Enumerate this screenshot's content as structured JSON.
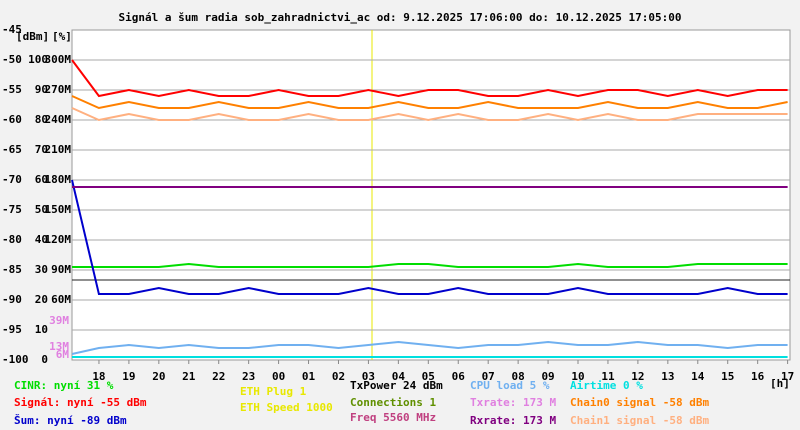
{
  "chart_data": {
    "type": "line",
    "title": "Signál a šum radia sob_zahradnictvi_ac od: 9.12.2025 17:06:00 do: 10.12.2025 17:05:00",
    "y_unit": "[dBm]",
    "y2_unit": "[%]",
    "x_unit": "[h]",
    "x": [
      17.1,
      18,
      19,
      20,
      21,
      22,
      23,
      24,
      25,
      26,
      27,
      28,
      29,
      30,
      31,
      32,
      33,
      34,
      35,
      36,
      37,
      38,
      39,
      40,
      41
    ],
    "xlim": [
      17.1,
      41.08
    ],
    "xticks": [
      18,
      19,
      20,
      21,
      22,
      23,
      {
        "value": 24,
        "label": "00"
      },
      {
        "value": 25,
        "label": "01"
      },
      {
        "value": 26,
        "label": "02"
      },
      {
        "value": 27,
        "label": "03"
      },
      {
        "value": 28,
        "label": "04"
      },
      {
        "value": 29,
        "label": "05"
      },
      {
        "value": 30,
        "label": "06"
      },
      {
        "value": 31,
        "label": "07"
      },
      {
        "value": 32,
        "label": "08"
      },
      {
        "value": 33,
        "label": "09"
      },
      {
        "value": 34,
        "label": "10"
      },
      {
        "value": 35,
        "label": "11"
      },
      {
        "value": 36,
        "label": "12"
      },
      {
        "value": 37,
        "label": "13"
      },
      {
        "value": 38,
        "label": "14"
      },
      {
        "value": 39,
        "label": "15"
      },
      {
        "value": 40,
        "label": "16"
      },
      {
        "value": 41,
        "label": "17"
      }
    ],
    "ylim": [
      -100,
      -45
    ],
    "yticks": [
      -45,
      -50,
      -55,
      -60,
      -65,
      -70,
      -75,
      -80,
      -85,
      -90,
      -95,
      -100
    ],
    "y2lim": [
      0,
      110
    ],
    "y2ticks": [
      100,
      90,
      80,
      70,
      60,
      50,
      40,
      30,
      20,
      10,
      0
    ],
    "y3lim": [
      0,
      330
    ],
    "y3ticks": [
      {
        "value": 300,
        "label": "300M"
      },
      {
        "value": 270,
        "label": "270M"
      },
      {
        "value": 240,
        "label": "240M"
      },
      {
        "value": 210,
        "label": "210M"
      },
      {
        "value": 180,
        "label": "180M"
      },
      {
        "value": 150,
        "label": "150M"
      },
      {
        "value": 120,
        "label": "120M"
      },
      {
        "value": 90,
        "label": "90M"
      },
      {
        "value": 60,
        "label": "60M"
      }
    ],
    "rate_labels": [
      "39M",
      "13M",
      "6M"
    ],
    "grid": true,
    "series": [
      {
        "name": "CINR: nyní 31 %",
        "color": "#00dd00",
        "axis": "y2",
        "values": [
          31,
          31,
          31,
          31,
          32,
          31,
          31,
          31,
          31,
          31,
          31,
          32,
          32,
          31,
          31,
          31,
          31,
          32,
          31,
          31,
          31,
          32,
          32,
          32,
          32
        ]
      },
      {
        "name": "Signál: nyní -55 dBm",
        "color": "#ff0000",
        "axis": "y",
        "values": [
          -50,
          -56,
          -55,
          -56,
          -55,
          -56,
          -56,
          -55,
          -56,
          -56,
          -55,
          -56,
          -55,
          -55,
          -56,
          -56,
          -55,
          -56,
          -55,
          -55,
          -56,
          -55,
          -56,
          -55,
          -55
        ]
      },
      {
        "name": "Šum: nyní -89 dBm",
        "color": "#0000cc",
        "axis": "y",
        "values": [
          -70,
          -89,
          -89,
          -88,
          -89,
          -89,
          -88,
          -89,
          -89,
          -89,
          -88,
          -89,
          -89,
          -88,
          -89,
          -89,
          -89,
          -88,
          -89,
          -89,
          -89,
          -89,
          -88,
          -89,
          -89
        ]
      },
      {
        "name": "CPU load 5 %",
        "color": "#70b0f0",
        "axis": "y2",
        "values": [
          2,
          4,
          5,
          4,
          5,
          4,
          4,
          5,
          5,
          4,
          5,
          6,
          5,
          4,
          5,
          5,
          6,
          5,
          5,
          6,
          5,
          5,
          4,
          5,
          5
        ]
      },
      {
        "name": "Txrate: 173 M",
        "color": "#e080e0",
        "axis": "y3",
        "values": [
          173,
          173,
          173,
          173,
          173,
          173,
          173,
          173,
          173,
          173,
          173,
          173,
          173,
          173,
          173,
          173,
          173,
          173,
          173,
          173,
          173,
          173,
          173,
          173,
          173
        ]
      },
      {
        "name": "Rxrate: 173 M",
        "color": "#800080",
        "axis": "y3",
        "values": [
          173,
          173,
          173,
          173,
          173,
          173,
          173,
          173,
          173,
          173,
          173,
          173,
          173,
          173,
          173,
          173,
          173,
          173,
          173,
          173,
          173,
          173,
          173,
          173,
          173
        ]
      },
      {
        "name": "Airtime 0 %",
        "color": "#00e0e0",
        "axis": "y2",
        "values": [
          1,
          1,
          1,
          1,
          1,
          1,
          1,
          1,
          1,
          1,
          1,
          1,
          1,
          1,
          1,
          1,
          1,
          1,
          1,
          1,
          1,
          1,
          1,
          1,
          1
        ]
      },
      {
        "name": "Chain0 signal -58 dBm",
        "color": "#ff8000",
        "axis": "y",
        "values": [
          -56,
          -58,
          -57,
          -58,
          -58,
          -57,
          -58,
          -58,
          -57,
          -58,
          -58,
          -57,
          -58,
          -58,
          -57,
          -58,
          -58,
          -58,
          -57,
          -58,
          -58,
          -57,
          -58,
          -58,
          -57
        ]
      },
      {
        "name": "Chain1 signal -58 dBm",
        "color": "#ffb080",
        "axis": "y",
        "values": [
          -58,
          -60,
          -59,
          -60,
          -60,
          -59,
          -60,
          -60,
          -59,
          -60,
          -60,
          -59,
          -60,
          -59,
          -60,
          -60,
          -59,
          -60,
          -59,
          -60,
          -60,
          -59,
          -59,
          -59,
          -59
        ]
      }
    ],
    "annotations": [
      {
        "text": "ETH Plug 1",
        "color": "#e8e800"
      },
      {
        "text": "ETH Speed 1000",
        "color": "#e8e800"
      },
      {
        "text": "TxPower 24 dBm",
        "color": "#000000"
      },
      {
        "text": "Connections 1",
        "color": "#609000"
      },
      {
        "text": "Freq 5560 MHz",
        "color": "#c04080"
      }
    ]
  }
}
